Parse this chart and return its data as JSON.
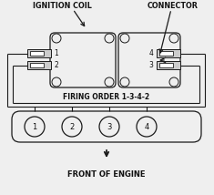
{
  "bg_color": "#efefef",
  "line_color": "#1a1a1a",
  "text_color": "#111111",
  "title_ignition_coil": "IGNITION COIL",
  "title_connector": "CONNECTOR",
  "title_firing_order": "FIRING ORDER 1-3-4-2",
  "title_front": "FRONT OF ENGINE",
  "cylinder_labels": [
    "1",
    "2",
    "3",
    "4"
  ],
  "coil_wire_labels": [
    "1",
    "2"
  ],
  "conn_wire_labels": [
    "4",
    "3"
  ]
}
